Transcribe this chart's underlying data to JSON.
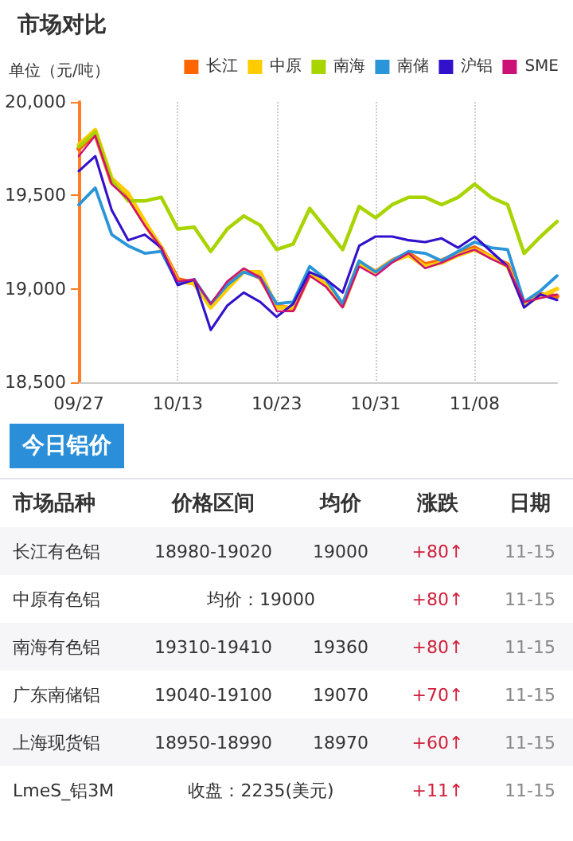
{
  "chart_data": {
    "type": "line",
    "title": "市场对比",
    "ylabel": "单位（元/吨）",
    "categories": [
      "09/27",
      null,
      null,
      null,
      null,
      null,
      "10/13",
      null,
      null,
      null,
      null,
      null,
      "10/23",
      null,
      null,
      null,
      null,
      null,
      "10/31",
      null,
      null,
      null,
      null,
      null,
      "11/08",
      null,
      null,
      null,
      null,
      null
    ],
    "series": [
      {
        "name": "长江",
        "color": "#ff6600",
        "values": [
          19750,
          19830,
          19570,
          19490,
          19350,
          19220,
          19050,
          19030,
          18910,
          19020,
          19100,
          19060,
          18910,
          18890,
          19080,
          19020,
          18910,
          19140,
          19090,
          19150,
          19190,
          19130,
          19150,
          19190,
          19220,
          19170,
          19130,
          18920,
          18970,
          18960
        ]
      },
      {
        "name": "中原",
        "color": "#ffcc00",
        "values": [
          19770,
          19850,
          19590,
          19510,
          19360,
          19220,
          19040,
          19030,
          18900,
          19000,
          19090,
          19090,
          18900,
          18900,
          19080,
          19020,
          18910,
          19140,
          19090,
          19150,
          19180,
          19120,
          19140,
          19180,
          19210,
          19170,
          19120,
          18920,
          18960,
          19000
        ]
      },
      {
        "name": "南海",
        "color": "#a8d400",
        "values": [
          19760,
          19840,
          19580,
          19470,
          19470,
          19490,
          19320,
          19330,
          19200,
          19320,
          19390,
          19340,
          19210,
          19240,
          19430,
          19320,
          19210,
          19440,
          19380,
          19450,
          19490,
          19490,
          19450,
          19490,
          19560,
          19490,
          19450,
          19190,
          19280,
          19360
        ]
      },
      {
        "name": "南储",
        "color": "#2a95d8",
        "values": [
          19450,
          19540,
          19290,
          19230,
          19190,
          19200,
          19030,
          19050,
          18920,
          19020,
          19090,
          19060,
          18920,
          18930,
          19120,
          19050,
          18920,
          19150,
          19090,
          19150,
          19200,
          19190,
          19150,
          19200,
          19250,
          19220,
          19210,
          18930,
          18990,
          19070
        ]
      },
      {
        "name": "沪铝",
        "color": "#3311cc",
        "values": [
          19630,
          19710,
          19420,
          19260,
          19290,
          19220,
          19020,
          19050,
          18780,
          18910,
          18980,
          18930,
          18850,
          18920,
          19090,
          19050,
          18980,
          19230,
          19280,
          19280,
          19260,
          19250,
          19270,
          19220,
          19280,
          19200,
          19120,
          18900,
          18970,
          18940
        ]
      },
      {
        "name": "SME",
        "color": "#cc1177",
        "values": [
          19710,
          19820,
          19560,
          19480,
          19340,
          19220,
          19040,
          19050,
          18920,
          19040,
          19110,
          19060,
          18880,
          18880,
          19070,
          19010,
          18900,
          19120,
          19070,
          19140,
          19190,
          19110,
          19140,
          19180,
          19210,
          19160,
          19120,
          18930,
          18950,
          18970
        ]
      }
    ],
    "ylim": [
      18500,
      20000
    ],
    "yticks": [
      {
        "value": 18500,
        "label": "18,500"
      },
      {
        "value": 19000,
        "label": "19,000"
      },
      {
        "value": 19500,
        "label": "19,500"
      },
      {
        "value": 20000,
        "label": "20,000"
      }
    ],
    "grid": "x",
    "legend": "top right",
    "marker": "none",
    "line_style": "solid",
    "annotations": [
      "今日铝价",
      "市场品种  价格区间  均价  涨跌  日期",
      "长江有色铝  18980-19020  19000  +80↑  11-15",
      "中原有色铝  均价：19000  +80↑  11-15",
      "南海有色铝  19310-19410  19360  +80↑  11-15",
      "广东南储铝  19040-19100  19070  +70↑  11-15",
      "上海现货铝  18950-18990  18970  +60↑  11-15",
      "LmeS_铝3M  收盘：2235(美元)  +11↑  11-15"
    ]
  }
}
